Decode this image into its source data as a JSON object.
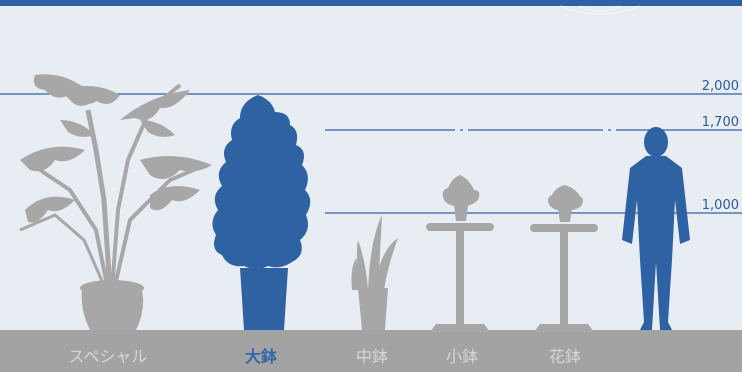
{
  "height_marks": [
    "2,000",
    "1,700",
    "1,000"
  ],
  "categories": [
    {
      "label": "スペシャル",
      "active": false
    },
    {
      "label": "大鉢",
      "active": true
    },
    {
      "label": "中鉢",
      "active": false
    },
    {
      "label": "小鉢",
      "active": false
    },
    {
      "label": "花鉢",
      "active": false
    }
  ],
  "colors": {
    "accent": "#2e62a3",
    "background": "#e8edf4",
    "inactive_plant": "#a7a7a7",
    "floor": "#a3a3a3"
  }
}
